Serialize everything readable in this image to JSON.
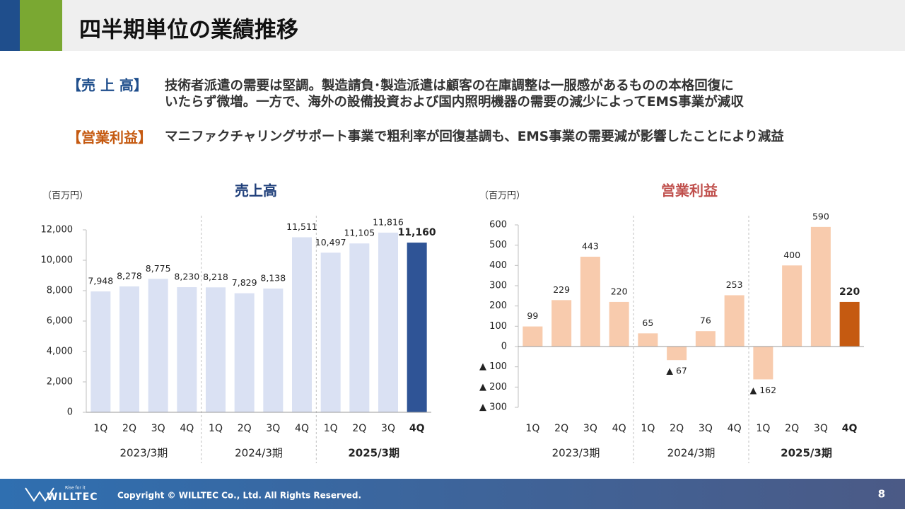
{
  "header": {
    "title": "四半期単位の業績推移"
  },
  "summary": [
    {
      "label": "【売 上 高】",
      "color": "#1f4e8c",
      "lines": [
        "技術者派遣の需要は堅調。製造請負･製造派遣は顧客の在庫調整は一服感があるものの本格回復に",
        "いたらず微増。一方で、海外の設備投資および国内照明機器の需要の減少によってEMS事業が減収"
      ]
    },
    {
      "label": "【営業利益】",
      "color": "#c55a11",
      "lines": [
        "マニファクチャリングサポート事業で粗利率が回復基調も、EMS事業の需要減が影響したことにより減益"
      ]
    }
  ],
  "chart_data": [
    {
      "type": "bar",
      "title": "売上高",
      "title_color": "#1f3f7a",
      "unit": "（百万円）",
      "categories": [
        "1Q",
        "2Q",
        "3Q",
        "4Q",
        "1Q",
        "2Q",
        "3Q",
        "4Q",
        "1Q",
        "2Q",
        "3Q",
        "4Q"
      ],
      "groups": [
        "2023/3期",
        "2024/3期",
        "2025/3期"
      ],
      "values": [
        7948,
        8278,
        8775,
        8230,
        8218,
        7829,
        8138,
        11511,
        10497,
        11105,
        11816,
        11160
      ],
      "value_labels": [
        "7,948",
        "8,278",
        "8,775",
        "8,230",
        "8,218",
        "7,829",
        "8,138",
        "11,511",
        "10,497",
        "11,105",
        "11,816",
        "11,160"
      ],
      "color": "#dae1f3",
      "highlight_color": "#2f5496",
      "ylim": [
        0,
        12000
      ],
      "yticks": [
        0,
        {
          "value": 2000,
          "label": "2,000"
        },
        {
          "value": 4000,
          "label": "4,000"
        },
        {
          "value": 6000,
          "label": "6,000"
        },
        {
          "value": 8000,
          "label": "8,000"
        },
        {
          "value": 10000,
          "label": "10,000"
        },
        {
          "value": 12000,
          "label": "12,000"
        }
      ]
    },
    {
      "type": "bar",
      "title": "営業利益",
      "title_color": "#c0504d",
      "unit": "（百万円）",
      "categories": [
        "1Q",
        "2Q",
        "3Q",
        "4Q",
        "1Q",
        "2Q",
        "3Q",
        "4Q",
        "1Q",
        "2Q",
        "3Q",
        "4Q"
      ],
      "groups": [
        "2023/3期",
        "2024/3期",
        "2025/3期"
      ],
      "values": [
        99,
        229,
        443,
        220,
        65,
        -67,
        76,
        253,
        -162,
        400,
        590,
        220
      ],
      "value_labels": [
        "99",
        "229",
        "443",
        "220",
        "65",
        "▲ 67",
        "76",
        "253",
        "▲ 162",
        "400",
        "590",
        "220"
      ],
      "color": "#f8cbad",
      "highlight_color": "#c55a11",
      "ylim": [
        -300,
        600
      ],
      "yticks": [
        {
          "value": -300,
          "label": "▲ 300"
        },
        {
          "value": -200,
          "label": "▲ 200"
        },
        {
          "value": -100,
          "label": "▲ 100"
        },
        0,
        100,
        200,
        300,
        400,
        500,
        600
      ]
    }
  ],
  "footer": {
    "tagline": "Rise for it",
    "logo": "WILLTEC",
    "copyright": "Copyright © WILLTEC Co., Ltd. All Rights Reserved.",
    "page": "8"
  }
}
